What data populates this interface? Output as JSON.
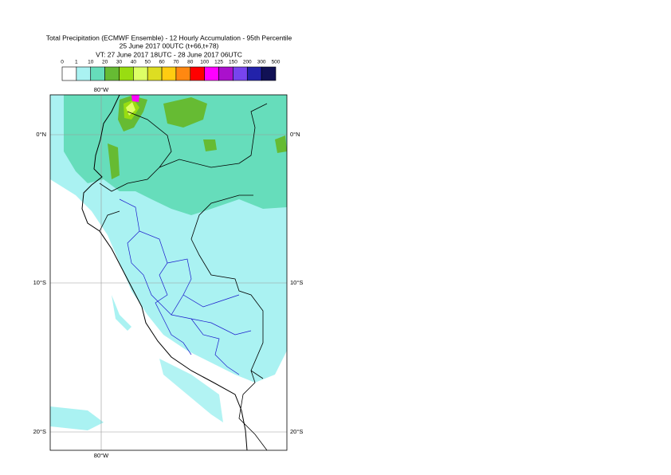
{
  "title": {
    "lines": [
      "Total Precipitation (ECMWF Ensemble) - 12 Hourly Accumulation - 95th Percentile",
      "25 June 2017 00UTC (t+66,t+78)",
      "VT: 27 June 2017 18UTC - 28 June 2017 06UTC"
    ]
  },
  "legend": {
    "labels": [
      "0",
      "1",
      "10",
      "20",
      "30",
      "40",
      "50",
      "60",
      "70",
      "80",
      "100",
      "125",
      "150",
      "200",
      "300",
      "500"
    ],
    "colors": [
      "#ffffff",
      "#aaf2f2",
      "#66ddbb",
      "#66bb33",
      "#99dd11",
      "#ddff66",
      "#dddd22",
      "#ffcc11",
      "#ff8811",
      "#ff0000",
      "#ff00ff",
      "#aa11cc",
      "#7744ee",
      "#2222aa",
      "#111155"
    ]
  },
  "map": {
    "lon_labels": [
      "80°W"
    ],
    "lat_labels": [
      "0°N",
      "10°S",
      "20°S"
    ]
  }
}
